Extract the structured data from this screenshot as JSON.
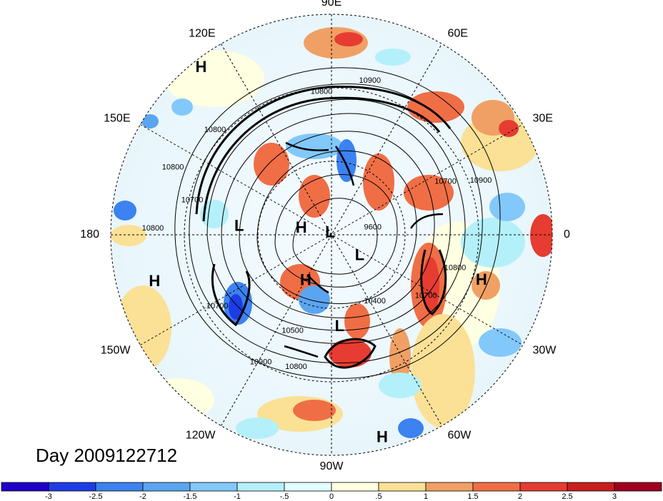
{
  "timestamp_label": "Day 2009122712",
  "longitude_labels": [
    {
      "text": "90E",
      "angle": 90
    },
    {
      "text": "60E",
      "angle": 60
    },
    {
      "text": "30E",
      "angle": 30
    },
    {
      "text": "0",
      "angle": 0
    },
    {
      "text": "30W",
      "angle": -30
    },
    {
      "text": "60W",
      "angle": -60
    },
    {
      "text": "90W",
      "angle": -90
    },
    {
      "text": "120W",
      "angle": -120
    },
    {
      "text": "150W",
      "angle": -150
    },
    {
      "text": "180",
      "angle": 180
    },
    {
      "text": "150E",
      "angle": 150
    },
    {
      "text": "120E",
      "angle": 120
    }
  ],
  "pressure_centers": [
    {
      "type": "H",
      "angle": 128,
      "r_frac": 0.96
    },
    {
      "type": "H",
      "angle": -165,
      "r_frac": 0.83
    },
    {
      "type": "H",
      "angle": -17,
      "r_frac": 0.71
    },
    {
      "type": "H",
      "angle": -76,
      "r_frac": 0.95
    },
    {
      "type": "H",
      "angle": 168,
      "r_frac": 0.14
    },
    {
      "type": "H",
      "angle": -119,
      "r_frac": 0.24
    },
    {
      "type": "L",
      "angle": 175,
      "r_frac": 0.42
    },
    {
      "type": "L",
      "angle": 133,
      "r_frac": 0.01
    },
    {
      "type": "L",
      "angle": -37,
      "r_frac": 0.16
    },
    {
      "type": "L",
      "angle": -85,
      "r_frac": 0.42
    }
  ],
  "contour_labels": [
    {
      "text": "10800",
      "angle": 94,
      "r_frac": 0.65
    },
    {
      "text": "10900",
      "angle": 76,
      "r_frac": 0.72
    },
    {
      "text": "10800",
      "angle": 138,
      "r_frac": 0.71
    },
    {
      "text": "10800",
      "angle": 157,
      "r_frac": 0.78
    },
    {
      "text": "10700",
      "angle": 166,
      "r_frac": 0.65
    },
    {
      "text": "10800",
      "angle": 178,
      "r_frac": 0.81
    },
    {
      "text": "10700",
      "angle": -148,
      "r_frac": 0.61
    },
    {
      "text": "10500",
      "angle": -112,
      "r_frac": 0.47
    },
    {
      "text": "10800",
      "angle": -105,
      "r_frac": 0.62
    },
    {
      "text": "10900",
      "angle": -119,
      "r_frac": 0.66
    },
    {
      "text": "10400",
      "angle": -57,
      "r_frac": 0.36
    },
    {
      "text": "10700",
      "angle": -33,
      "r_frac": 0.51
    },
    {
      "text": "10800",
      "angle": -15,
      "r_frac": 0.58
    },
    {
      "text": "9600",
      "angle": 10,
      "r_frac": 0.19
    },
    {
      "text": "10700",
      "angle": 25,
      "r_frac": 0.57
    },
    {
      "text": "10900",
      "angle": 20,
      "r_frac": 0.72
    }
  ],
  "colorbar": {
    "colors": [
      "#2000c8",
      "#1e3ce6",
      "#3c82f0",
      "#5aa5f0",
      "#82c8fa",
      "#b4f0fa",
      "#e1ffff",
      "#ffffe1",
      "#fae196",
      "#f0a064",
      "#f06e46",
      "#e63c32",
      "#c81e1e",
      "#a0001e"
    ],
    "ticks": [
      "-3",
      "-2.5",
      "-2",
      "-1.5",
      "-1",
      "-.5",
      "0",
      ".5",
      "1",
      "1.5",
      "2",
      "2.5",
      "3"
    ]
  }
}
